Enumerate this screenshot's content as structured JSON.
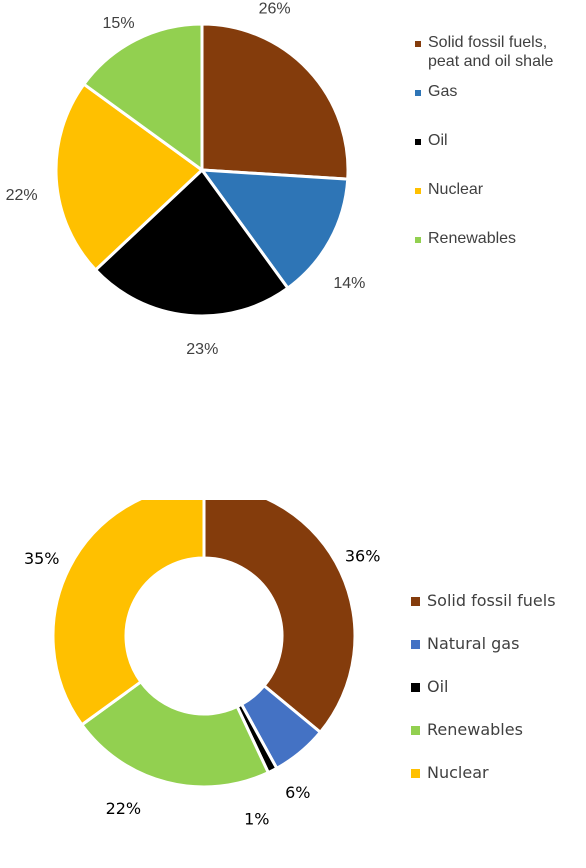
{
  "chart_data": [
    {
      "type": "pie",
      "categories": [
        "Solid fossil fuels, peat and oil shale",
        "Gas",
        "Oil",
        "Nuclear",
        "Renewables"
      ],
      "legend_lines": [
        [
          "Solid fossil fuels,",
          "peat and oil shale"
        ],
        [
          "Gas"
        ],
        [
          "Oil"
        ],
        [
          "Nuclear"
        ],
        [
          "Renewables"
        ]
      ],
      "values": [
        26,
        14,
        23,
        22,
        15
      ],
      "labels": [
        "26%",
        "14%",
        "23%",
        "22%",
        "15%"
      ],
      "colors": [
        "#843C0C",
        "#2E75B6",
        "#000000",
        "#FFC000",
        "#92D050"
      ],
      "legend_position": "right"
    },
    {
      "type": "pie",
      "subtype": "donut",
      "categories": [
        "Solid fossil fuels",
        "Natural gas",
        "Oil",
        "Renewables",
        "Nuclear"
      ],
      "legend_lines": [
        [
          "Solid fossil fuels"
        ],
        [
          "Natural gas"
        ],
        [
          "Oil"
        ],
        [
          "Renewables"
        ],
        [
          "Nuclear"
        ]
      ],
      "values": [
        36,
        6,
        1,
        22,
        35
      ],
      "labels": [
        "36%",
        "6%",
        "1%",
        "22%",
        "35%"
      ],
      "colors": [
        "#843C0C",
        "#4472C4",
        "#000000",
        "#92D050",
        "#FFC000"
      ],
      "legend_position": "right"
    }
  ]
}
